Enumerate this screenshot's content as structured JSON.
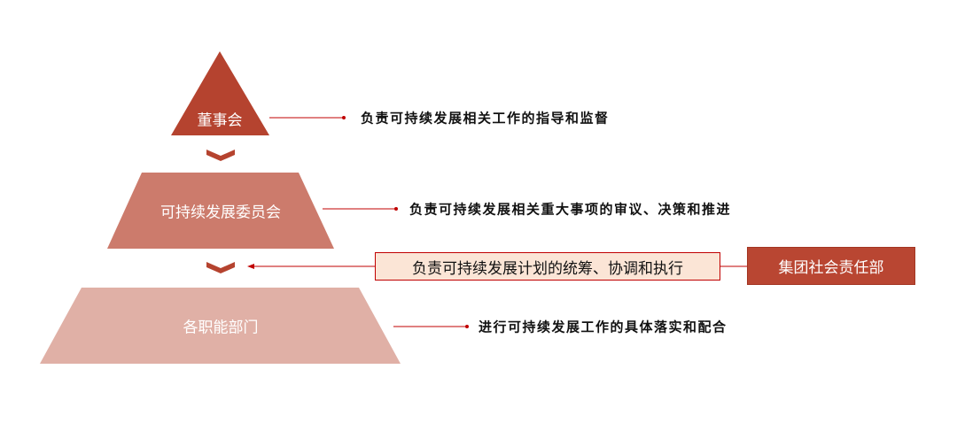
{
  "colors": {
    "level1": "#b5432f",
    "level2": "#cc7b6c",
    "level3": "#e0b0a6",
    "connector": "#c00000",
    "plan_box_fill": "#fbe5d6",
    "dept_box_fill": "#b94632"
  },
  "levels": [
    {
      "name": "董事会",
      "description": "负责可持续发展相关工作的指导和监督"
    },
    {
      "name": "可持续发展委员会",
      "description": "负责可持续发展相关重大事项的审议、决策和推进"
    },
    {
      "name": "各职能部门",
      "description": "进行可持续发展工作的具体落实和配合"
    }
  ],
  "side": {
    "plan_text": "负责可持续发展计划的统筹、协调和执行",
    "department": "集团社会责任部"
  }
}
